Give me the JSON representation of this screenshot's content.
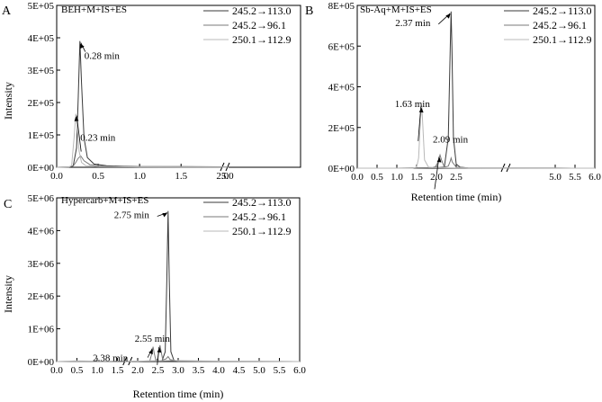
{
  "figure": {
    "y_axis_label": "Intensity",
    "x_axis_label": "Retention time (min)"
  },
  "chart_data": [
    {
      "type": "line",
      "panel_letter": "A",
      "title": "BEH+M+IS+ES",
      "xlabel": "",
      "ylabel": "Intensity",
      "xlim": [
        0.0,
        6.0
      ],
      "ylim": [
        0,
        500000
      ],
      "x_ticks": [
        "0.0",
        "0.5",
        "1.0",
        "1.5",
        "2.0",
        "5.0"
      ],
      "y_ticks": [
        "0E+00",
        "1E+05",
        "2E+05",
        "3E+05",
        "4E+05",
        "5E+05"
      ],
      "axis_break_between": [
        "2.0",
        "5.0"
      ],
      "legend_position": "top-right",
      "series": [
        {
          "name": "245.2→113.0",
          "color": "#3a3a3a",
          "x": [
            0.0,
            0.15,
            0.2,
            0.24,
            0.26,
            0.28,
            0.3,
            0.33,
            0.37,
            0.45,
            0.6,
            0.8,
            1.0,
            1.5,
            2.0,
            5.0
          ],
          "y": [
            0,
            1000,
            5000,
            60000,
            220000,
            390000,
            260000,
            90000,
            30000,
            10000,
            5000,
            3000,
            2000,
            2000,
            1500,
            1000
          ]
        },
        {
          "name": "245.2→96.1",
          "color": "#7a7a7a",
          "x": [
            0.0,
            0.15,
            0.2,
            0.23,
            0.26,
            0.29,
            0.33,
            0.4,
            0.6,
            1.0,
            2.0,
            5.0
          ],
          "y": [
            0,
            1000,
            4000,
            15000,
            28000,
            35000,
            20000,
            8000,
            3000,
            1000,
            800,
            500
          ]
        },
        {
          "name": "250.1→112.9",
          "color": "#b8b8b8",
          "x": [
            0.0,
            0.15,
            0.18,
            0.21,
            0.23,
            0.25,
            0.27,
            0.3,
            0.35,
            0.5,
            1.0,
            2.0,
            5.0
          ],
          "y": [
            0,
            1000,
            5000,
            90000,
            165000,
            120000,
            50000,
            15000,
            5000,
            2000,
            1000,
            800,
            500
          ]
        }
      ],
      "annotations": [
        {
          "text": "0.28 min",
          "x": 0.28,
          "y": 390000
        },
        {
          "text": "0.23 min",
          "x": 0.23,
          "y": 165000
        }
      ]
    },
    {
      "type": "line",
      "panel_letter": "B",
      "title": "Sb-Aq+M+IS+ES",
      "xlabel": "Retention time (min)",
      "ylabel": "",
      "xlim": [
        0.0,
        6.0
      ],
      "ylim": [
        0,
        800000
      ],
      "x_ticks": [
        "0.0",
        "0.5",
        "1.0",
        "1.5",
        "2.0",
        "2.5",
        "5.0",
        "5.5",
        "6.0"
      ],
      "y_ticks": [
        "0E+00",
        "2E+05",
        "4E+05",
        "6E+05",
        "8E+05"
      ],
      "axis_break_between": [
        "2.5",
        "5.0"
      ],
      "legend_position": "top-right",
      "series": [
        {
          "name": "245.2→113.0",
          "color": "#3a3a3a",
          "x": [
            0.0,
            1.0,
            2.0,
            2.2,
            2.3,
            2.35,
            2.37,
            2.39,
            2.43,
            2.5,
            2.6,
            2.8,
            5.0,
            6.0
          ],
          "y": [
            0,
            0,
            2000,
            5000,
            150000,
            600000,
            770000,
            600000,
            150000,
            20000,
            5000,
            1000,
            500,
            0
          ]
        },
        {
          "name": "245.2→96.1",
          "color": "#7a7a7a",
          "x": [
            0.0,
            1.0,
            1.9,
            2.0,
            2.05,
            2.09,
            2.13,
            2.2,
            2.3,
            2.35,
            2.37,
            2.4,
            2.5,
            2.8,
            5.0,
            6.0
          ],
          "y": [
            0,
            0,
            2000,
            10000,
            40000,
            65000,
            40000,
            5000,
            10000,
            35000,
            50000,
            30000,
            5000,
            1000,
            500,
            0
          ]
        },
        {
          "name": "250.1→112.9",
          "color": "#b8b8b8",
          "x": [
            0.0,
            1.4,
            1.5,
            1.55,
            1.6,
            1.63,
            1.66,
            1.7,
            1.8,
            2.0,
            2.5,
            5.0,
            6.0
          ],
          "y": [
            0,
            0,
            5000,
            50000,
            250000,
            310000,
            200000,
            40000,
            5000,
            2000,
            1000,
            500,
            0
          ]
        }
      ],
      "annotations": [
        {
          "text": "2.37 min",
          "x": 2.37,
          "y": 770000
        },
        {
          "text": "1.63 min",
          "x": 1.63,
          "y": 310000
        },
        {
          "text": "2.09 min",
          "x": 2.09,
          "y": 65000
        }
      ]
    },
    {
      "type": "line",
      "panel_letter": "C",
      "title": "Hypercarb+M+IS+ES",
      "xlabel": "Retention time (min)",
      "ylabel": "Intensity",
      "xlim": [
        0.0,
        6.0
      ],
      "ylim": [
        0,
        5000000
      ],
      "x_ticks": [
        "0.0",
        "0.5",
        "1.0",
        "1.5",
        "2.0",
        "2.5",
        "3.0",
        "3.5",
        "4.0",
        "4.5",
        "5.0",
        "5.5",
        "6.0"
      ],
      "y_ticks": [
        "0E+00",
        "1E+06",
        "2E+06",
        "3E+06",
        "4E+06",
        "5E+06"
      ],
      "axis_break_between": [
        "1.5",
        "2.0"
      ],
      "legend_position": "top-right",
      "series": [
        {
          "name": "245.2→113.0",
          "color": "#3a3a3a",
          "x": [
            0.0,
            2.0,
            2.6,
            2.68,
            2.72,
            2.75,
            2.78,
            2.82,
            2.9,
            3.5,
            6.0
          ],
          "y": [
            0,
            10000,
            20000,
            300000,
            2500000,
            4600000,
            2500000,
            300000,
            20000,
            5000,
            0
          ]
        },
        {
          "name": "245.2→96.1",
          "color": "#7a7a7a",
          "x": [
            0.0,
            2.0,
            2.3,
            2.35,
            2.38,
            2.41,
            2.45,
            2.5,
            2.53,
            2.55,
            2.58,
            2.62,
            2.7,
            2.75,
            2.8,
            3.0,
            4.0,
            6.0
          ],
          "y": [
            0,
            5000,
            20000,
            250000,
            450000,
            250000,
            30000,
            100000,
            350000,
            500000,
            300000,
            50000,
            80000,
            150000,
            60000,
            10000,
            5000,
            0
          ]
        },
        {
          "name": "250.1→112.9",
          "color": "#b8b8b8",
          "x": [
            0.0,
            0.5,
            1.0,
            2.0,
            2.5,
            3.0,
            3.5,
            4.0,
            5.0,
            6.0
          ],
          "y": [
            0,
            20000,
            10000,
            15000,
            20000,
            30000,
            20000,
            15000,
            10000,
            0
          ]
        }
      ],
      "annotations": [
        {
          "text": "2.75 min",
          "x": 2.75,
          "y": 4600000
        },
        {
          "text": "2.55 min",
          "x": 2.55,
          "y": 500000
        },
        {
          "text": "2.38 min",
          "x": 2.38,
          "y": 450000
        }
      ]
    }
  ]
}
